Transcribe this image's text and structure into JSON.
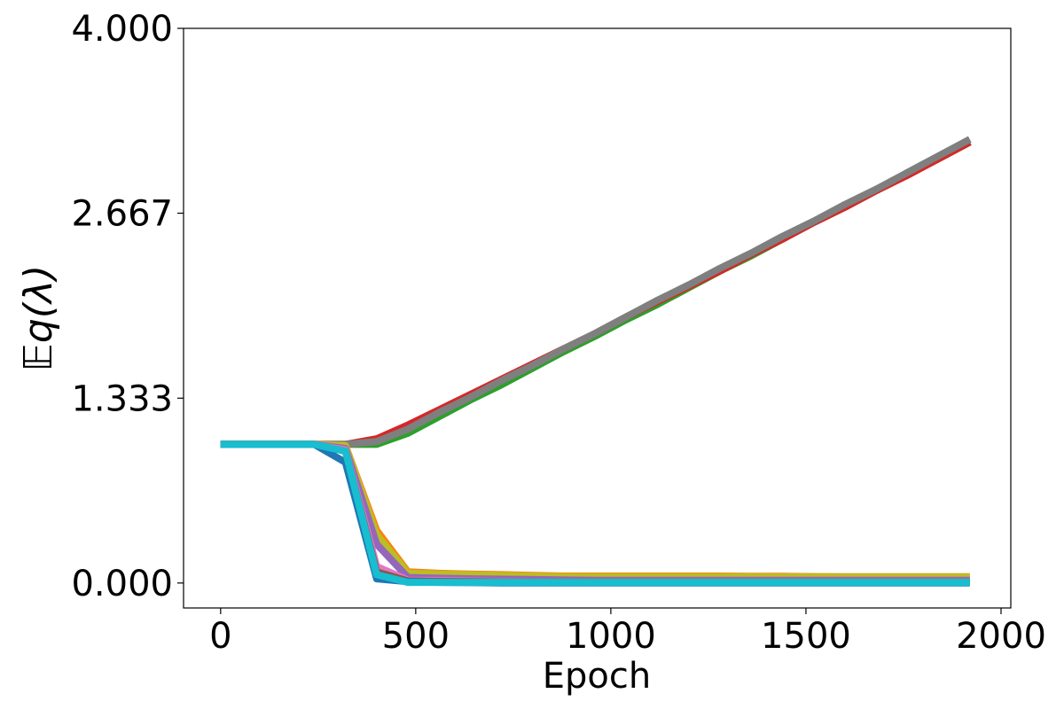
{
  "chart_data": {
    "type": "line",
    "title": "",
    "xlabel": "Epoch",
    "ylabel": "𝔼q(λ)",
    "xlim": [
      -95,
      2025
    ],
    "ylim": [
      -0.18,
      4.0
    ],
    "xticks": [
      0,
      500,
      1000,
      1500,
      2000
    ],
    "xtick_labels": [
      "0",
      "500",
      "1000",
      "1500",
      "2000"
    ],
    "yticks": [
      0.0,
      1.333,
      2.667,
      4.0
    ],
    "ytick_labels": [
      "0.000",
      "1.333",
      "2.667",
      "4.000"
    ],
    "grid": false,
    "legend": "none",
    "x": [
      0,
      80,
      160,
      240,
      320,
      400,
      480,
      560,
      640,
      720,
      800,
      880,
      960,
      1040,
      1120,
      1200,
      1280,
      1360,
      1440,
      1520,
      1600,
      1680,
      1760,
      1840,
      1920
    ],
    "series": [
      {
        "color": "#2ca02c",
        "values": [
          1.0,
          1.0,
          1.0,
          1.0,
          1.0,
          1.0,
          1.08,
          1.2,
          1.32,
          1.43,
          1.55,
          1.67,
          1.78,
          1.9,
          2.01,
          2.13,
          2.25,
          2.36,
          2.48,
          2.6,
          2.71,
          2.83,
          2.95,
          3.06,
          3.18
        ]
      },
      {
        "color": "#d62728",
        "values": [
          1.0,
          1.0,
          1.0,
          1.0,
          1.0,
          1.04,
          1.14,
          1.25,
          1.36,
          1.47,
          1.58,
          1.69,
          1.8,
          1.92,
          2.03,
          2.14,
          2.25,
          2.37,
          2.48,
          2.6,
          2.71,
          2.83,
          2.94,
          3.06,
          3.18
        ]
      },
      {
        "color": "#7f7f7f",
        "values": [
          1.0,
          1.0,
          1.0,
          1.0,
          1.0,
          1.02,
          1.11,
          1.23,
          1.34,
          1.46,
          1.57,
          1.69,
          1.8,
          1.92,
          2.04,
          2.15,
          2.27,
          2.38,
          2.5,
          2.61,
          2.73,
          2.84,
          2.96,
          3.08,
          3.2
        ]
      },
      {
        "color": "#ff7f0e",
        "values": [
          1.0,
          1.0,
          1.0,
          1.0,
          0.99,
          0.38,
          0.08,
          0.07,
          0.065,
          0.06,
          0.055,
          0.05,
          0.05,
          0.05,
          0.05,
          0.05,
          0.05,
          0.048,
          0.048,
          0.046,
          0.045,
          0.045,
          0.045,
          0.045,
          0.045
        ]
      },
      {
        "color": "#bcbd22",
        "values": [
          1.0,
          1.0,
          1.0,
          1.0,
          0.99,
          0.35,
          0.07,
          0.065,
          0.06,
          0.055,
          0.05,
          0.045,
          0.045,
          0.045,
          0.045,
          0.045,
          0.045,
          0.045,
          0.044,
          0.043,
          0.042,
          0.042,
          0.042,
          0.042,
          0.042
        ]
      },
      {
        "color": "#9467bd",
        "values": [
          1.0,
          1.0,
          1.0,
          1.0,
          0.97,
          0.28,
          0.04,
          0.035,
          0.03,
          0.028,
          0.025,
          0.022,
          0.02,
          0.02,
          0.02,
          0.02,
          0.02,
          0.02,
          0.02,
          0.02,
          0.02,
          0.02,
          0.02,
          0.02,
          0.02
        ]
      },
      {
        "color": "#e377c2",
        "values": [
          1.0,
          1.0,
          1.0,
          1.0,
          0.96,
          0.12,
          0.02,
          0.018,
          0.015,
          0.012,
          0.01,
          0.01,
          0.01,
          0.01,
          0.01,
          0.01,
          0.01,
          0.01,
          0.01,
          0.01,
          0.01,
          0.01,
          0.01,
          0.01,
          0.01
        ]
      },
      {
        "color": "#8c564b",
        "values": [
          1.0,
          1.0,
          1.0,
          1.0,
          0.95,
          0.08,
          0.015,
          0.012,
          0.01,
          0.008,
          0.008,
          0.008,
          0.008,
          0.008,
          0.008,
          0.008,
          0.008,
          0.008,
          0.008,
          0.008,
          0.008,
          0.008,
          0.008,
          0.008,
          0.008
        ]
      },
      {
        "color": "#1f77b4",
        "values": [
          1.0,
          1.0,
          1.0,
          1.0,
          0.87,
          0.03,
          0.01,
          0.005,
          0.003,
          0.0,
          0.0,
          0.0,
          0.0,
          0.0,
          0.0,
          0.0,
          0.0,
          0.0,
          0.0,
          0.0,
          0.0,
          0.0,
          0.0,
          0.0,
          0.0
        ]
      },
      {
        "color": "#17becf",
        "values": [
          1.0,
          1.0,
          1.0,
          1.0,
          0.95,
          0.06,
          0.005,
          0.005,
          0.005,
          0.005,
          0.005,
          0.005,
          0.005,
          0.005,
          0.005,
          0.005,
          0.005,
          0.005,
          0.005,
          0.005,
          0.005,
          0.005,
          0.005,
          0.005,
          0.005
        ]
      }
    ]
  }
}
